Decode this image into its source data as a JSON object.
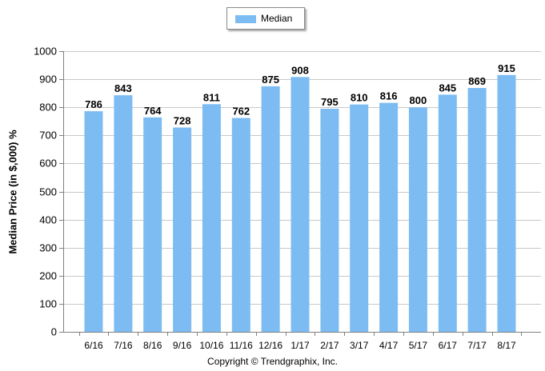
{
  "legend": {
    "label": "Median"
  },
  "colors": {
    "bar": "#7dbcf2",
    "grid": "#c8c8c8",
    "axis": "#808080"
  },
  "footer": {
    "copyright": "Copyright © Trendgraphix, Inc."
  },
  "chart_data": {
    "type": "bar",
    "title": "",
    "xlabel": "",
    "ylabel": "Median Price (in $,000) %",
    "ylim": [
      0,
      1000
    ],
    "yticks": [
      0,
      100,
      200,
      300,
      400,
      500,
      600,
      700,
      800,
      900,
      1000
    ],
    "grid": true,
    "legend_position": "top",
    "categories": [
      "6/16",
      "7/16",
      "8/16",
      "9/16",
      "10/16",
      "11/16",
      "12/16",
      "1/17",
      "2/17",
      "3/17",
      "4/17",
      "5/17",
      "6/17",
      "7/17",
      "8/17"
    ],
    "series": [
      {
        "name": "Median",
        "values": [
          786,
          843,
          764,
          728,
          811,
          762,
          875,
          908,
          795,
          810,
          816,
          800,
          845,
          869,
          915
        ]
      }
    ]
  }
}
